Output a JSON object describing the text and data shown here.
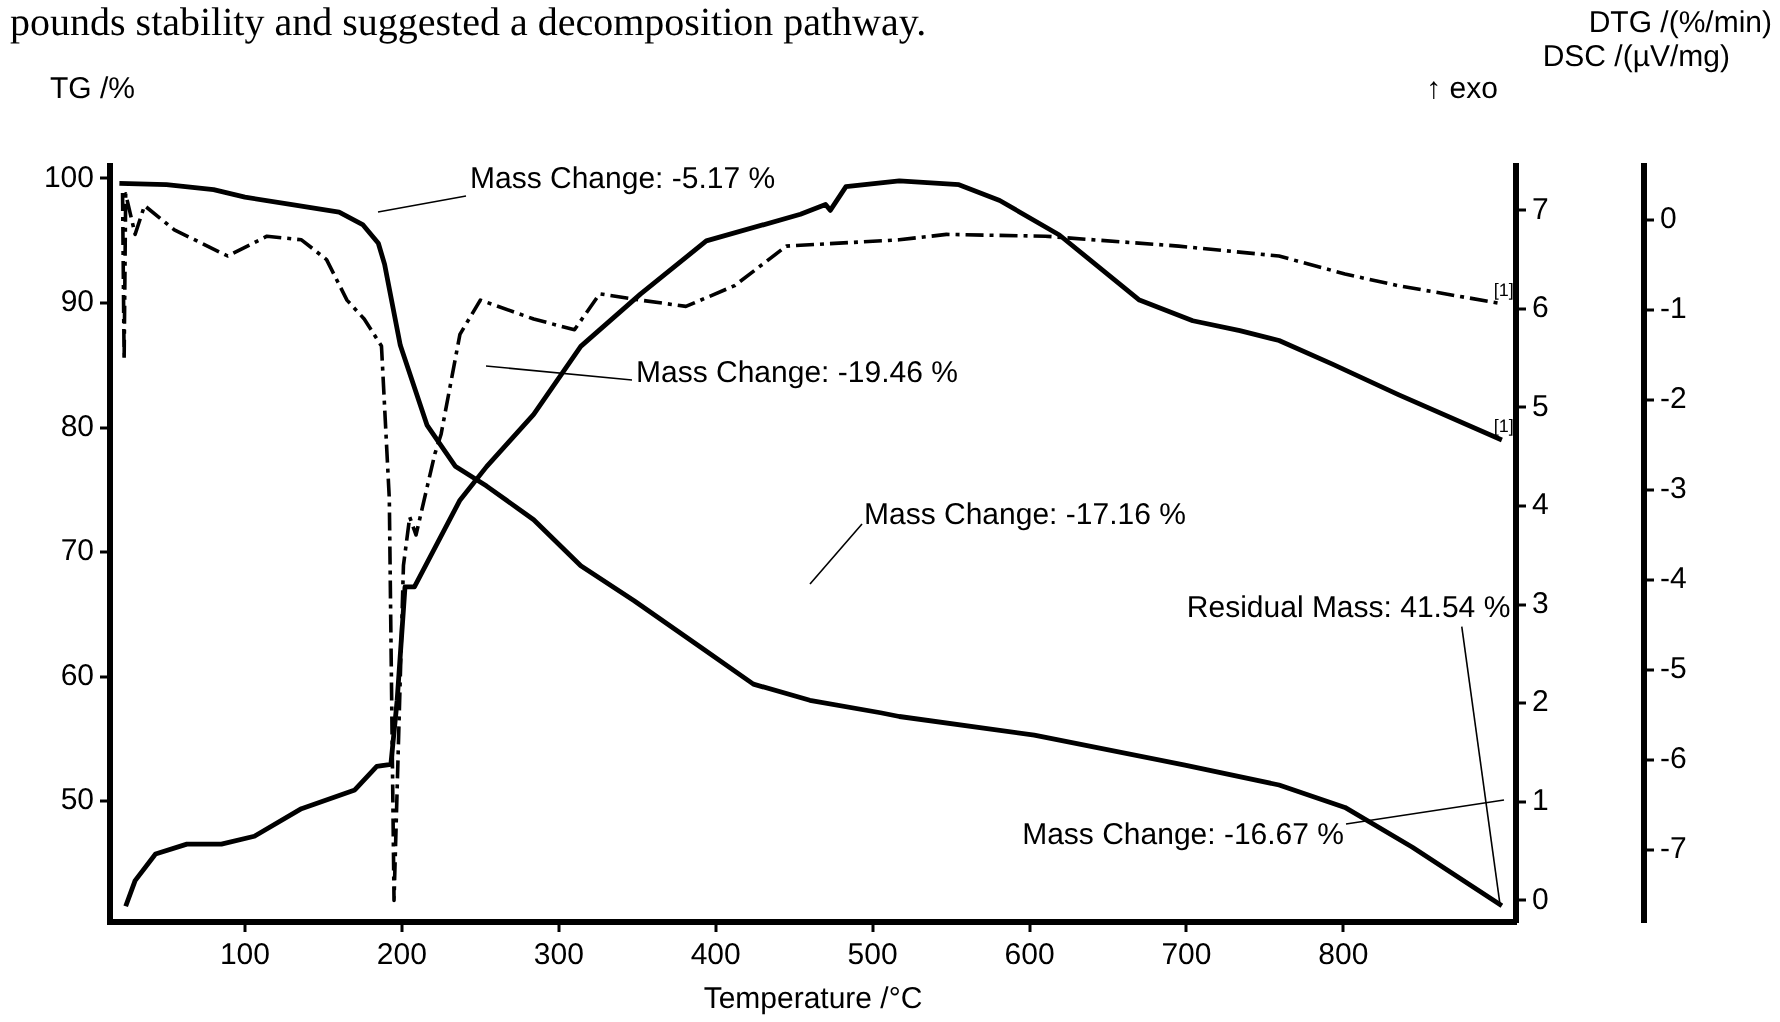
{
  "chart_data": {
    "type": "line",
    "xlabel": "Temperature /°C",
    "ylabel": "TG /%",
    "y2label": "DSC /(µV/mg)",
    "y3label": "DTG /(%/min)",
    "xlim": [
      14,
      910
    ],
    "xticks": [
      100,
      200,
      300,
      400,
      500,
      600,
      700,
      800
    ],
    "ylim": [
      40.3,
      101
    ],
    "yticks": [
      50,
      60,
      70,
      80,
      90,
      100
    ],
    "y2lim": [
      -0.22,
      7.45
    ],
    "y2ticks": [
      0,
      1,
      2,
      3,
      4,
      5,
      6,
      7
    ],
    "y3lim": [
      -7.8,
      0.6
    ],
    "y3ticks": [
      -7,
      -6,
      -5,
      -4,
      -3,
      -2,
      -1,
      0
    ],
    "grid": false,
    "legend": false,
    "marker": "none",
    "series": [
      {
        "color": "#000000",
        "line_style": "solid",
        "x": [
          20,
          50,
          80,
          100,
          130,
          160,
          175,
          185,
          189,
          199,
          216,
          234,
          254,
          284,
          314,
          348,
          390,
          424,
          460,
          505,
          517,
          603,
          699,
          759,
          801,
          844,
          901
        ],
        "values": [
          99.6,
          99.5,
          99.1,
          98.5,
          97.9,
          97.3,
          96.3,
          94.8,
          93.1,
          86.6,
          80.2,
          76.9,
          75.3,
          72.6,
          68.9,
          66.1,
          62.4,
          59.4,
          58.1,
          57.1,
          56.8,
          55.3,
          52.9,
          51.3,
          49.5,
          46.3,
          41.6
        ]
      },
      {
        "name": "[1]",
        "color": "#000000",
        "line_style": "solid",
        "axis": "y2",
        "x": [
          24,
          30,
          43,
          63,
          85,
          106,
          136,
          170,
          184,
          193,
          197,
          202,
          208,
          237,
          254,
          284,
          314,
          352,
          394,
          454,
          470,
          473,
          483,
          517,
          555,
          581,
          619,
          670,
          704,
          734,
          759,
          793,
          835,
          901
        ],
        "values": [
          -0.06,
          0.2,
          0.47,
          0.57,
          0.57,
          0.65,
          0.93,
          1.12,
          1.36,
          1.38,
          2.03,
          3.18,
          3.18,
          4.06,
          4.4,
          4.93,
          5.62,
          6.15,
          6.69,
          6.96,
          7.06,
          7.0,
          7.24,
          7.3,
          7.26,
          7.1,
          6.75,
          6.09,
          5.88,
          5.78,
          5.68,
          5.44,
          5.13,
          4.67
        ]
      },
      {
        "name": "[1]",
        "color": "#000000",
        "line_style": "dashed",
        "axis": "y3",
        "x": [
          22,
          23,
          24,
          30,
          36,
          55,
          89,
          114,
          136,
          152,
          165,
          176,
          187,
          192,
          195,
          201,
          205,
          209,
          221,
          225,
          237,
          250,
          284,
          310,
          326,
          352,
          381,
          412,
          445,
          517,
          547,
          610,
          695,
          759,
          801,
          835,
          901
        ],
        "values": [
          0.3,
          -1.56,
          0.29,
          -0.16,
          0.16,
          -0.11,
          -0.4,
          -0.18,
          -0.22,
          -0.44,
          -0.89,
          -1.1,
          -1.4,
          -3.1,
          -7.56,
          -3.84,
          -3.3,
          -3.5,
          -2.6,
          -2.38,
          -1.27,
          -0.89,
          -1.1,
          -1.22,
          -0.82,
          -0.89,
          -0.96,
          -0.73,
          -0.29,
          -0.22,
          -0.16,
          -0.18,
          -0.29,
          -0.4,
          -0.6,
          -0.73,
          -0.93
        ]
      }
    ],
    "annotations": [
      "pounds stability and suggested a decomposition pathway.",
      "↑ exo",
      "Mass Change: -5.17 %",
      "Mass Change: -19.46 %",
      "Mass Change: -17.16 %",
      "Mass Change: -16.67 %",
      {
        "text": "Residual Mass: 41.54 %",
        "x": 900,
        "y": 41.54
      }
    ]
  }
}
